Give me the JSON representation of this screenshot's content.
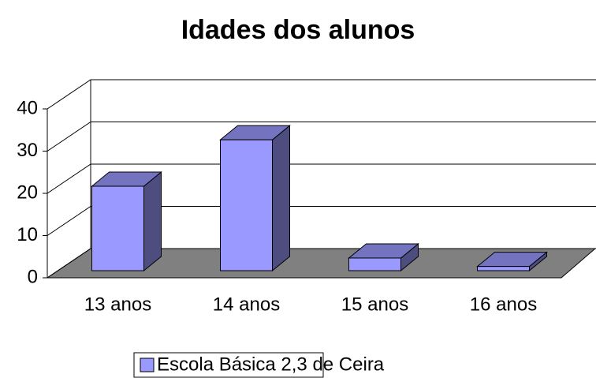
{
  "chart_data": {
    "type": "bar3d",
    "title": "Idades dos alunos",
    "categories": [
      "13 anos",
      "14 anos",
      "15 anos",
      "16 anos"
    ],
    "series": [
      {
        "name": "Escola Básica 2,3 de Ceira",
        "color": "#9999ff",
        "values": [
          20,
          31,
          3,
          1
        ]
      }
    ],
    "ylim": [
      0,
      40
    ],
    "yticks": [
      0,
      10,
      20,
      30,
      40
    ],
    "grid": true,
    "legend": "bottom"
  }
}
